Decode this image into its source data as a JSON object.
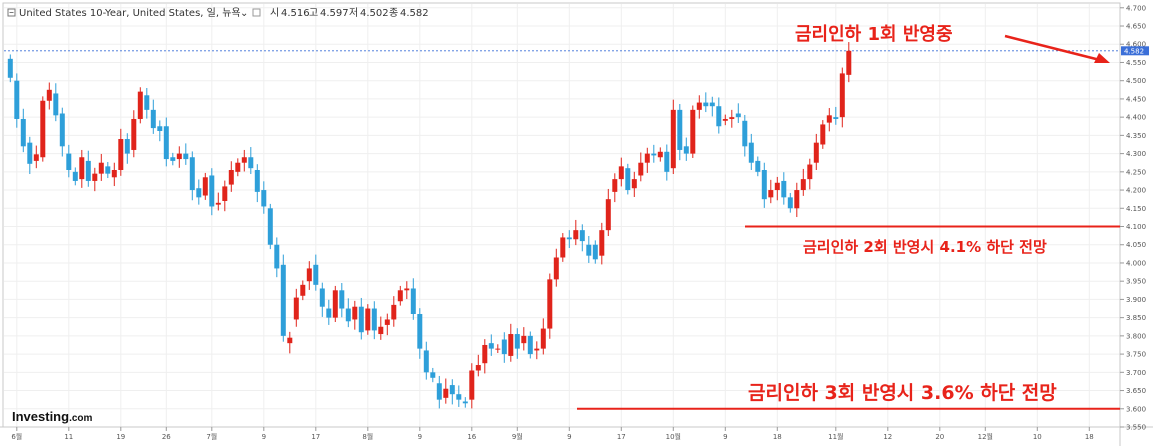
{
  "header": {
    "title": "United States 10-Year, United States, 일, 뉴욕",
    "open_label": "시",
    "open_value": "4.516",
    "high_label": "고",
    "high_value": "4.597",
    "low_label": "저",
    "low_value": "4.502",
    "close_label": "종",
    "close_value": "4.582"
  },
  "logo": {
    "main": "Investing",
    "suffix": ".com"
  },
  "current_price_label": "4.582",
  "annotations": {
    "a1": "금리인하 1회 반영중",
    "a2": "금리인하 2회 반영시 4.1% 하단 전망",
    "a3": "금리인하 3회 반영시 3.6% 하단 전망"
  },
  "colors": {
    "up": "#e0241b",
    "down": "#2e9fd9",
    "annotation": "#e8231a",
    "price_line": "#3b6fd8",
    "price_label_bg": "#3b6fd8"
  },
  "chart_data": {
    "type": "candlestick",
    "y_ticks": [
      "3.550",
      "3.600",
      "3.650",
      "3.700",
      "3.750",
      "3.800",
      "3.850",
      "3.900",
      "3.950",
      "4.000",
      "4.050",
      "4.100",
      "4.150",
      "4.200",
      "4.250",
      "4.300",
      "4.350",
      "4.400",
      "4.450",
      "4.500",
      "4.550",
      "4.600",
      "4.650",
      "4.700"
    ],
    "ylim": [
      3.55,
      4.72
    ],
    "x_ticks": [
      "6월",
      "11",
      "19",
      "26",
      "7월",
      "9",
      "17",
      "8월",
      "9",
      "16",
      "9월",
      "9",
      "17",
      "10월",
      "9",
      "18",
      "11월",
      "12",
      "20",
      "12월",
      "10",
      "18"
    ],
    "x_tick_index": [
      1,
      9,
      17,
      24,
      31,
      39,
      47,
      55,
      63,
      71,
      78,
      86,
      94,
      102,
      110,
      118,
      127,
      135,
      143,
      150,
      158,
      166
    ],
    "horizontal_lines": [
      4.1,
      3.6
    ],
    "current_price": 4.582,
    "candles": [
      [
        4.56,
        4.508
      ],
      [
        4.5,
        4.395
      ],
      [
        4.395,
        4.32
      ],
      [
        4.33,
        4.272
      ],
      [
        4.28,
        4.298
      ],
      [
        4.29,
        4.445
      ],
      [
        4.445,
        4.475
      ],
      [
        4.465,
        4.405
      ],
      [
        4.41,
        4.32
      ],
      [
        4.3,
        4.255
      ],
      [
        4.25,
        4.225
      ],
      [
        4.23,
        4.29
      ],
      [
        4.28,
        4.225
      ],
      [
        4.225,
        4.245
      ],
      [
        4.245,
        4.275
      ],
      [
        4.265,
        4.245
      ],
      [
        4.235,
        4.255
      ],
      [
        4.255,
        4.34
      ],
      [
        4.34,
        4.3
      ],
      [
        4.31,
        4.395
      ],
      [
        4.395,
        4.47
      ],
      [
        4.46,
        4.42
      ],
      [
        4.42,
        4.37
      ],
      [
        4.375,
        4.362
      ],
      [
        4.375,
        4.285
      ],
      [
        4.29,
        4.28
      ],
      [
        4.285,
        4.3
      ],
      [
        4.3,
        4.285
      ],
      [
        4.29,
        4.2
      ],
      [
        4.205,
        4.18
      ],
      [
        4.185,
        4.235
      ],
      [
        4.24,
        4.155
      ],
      [
        4.16,
        4.165
      ],
      [
        4.17,
        4.21
      ],
      [
        4.215,
        4.255
      ],
      [
        4.25,
        4.275
      ],
      [
        4.275,
        4.29
      ],
      [
        4.29,
        4.26
      ],
      [
        4.255,
        4.195
      ],
      [
        4.2,
        4.155
      ],
      [
        4.15,
        4.05
      ],
      [
        4.05,
        3.985
      ],
      [
        3.995,
        3.8
      ],
      [
        3.78,
        3.795
      ],
      [
        3.845,
        3.905
      ],
      [
        3.91,
        3.94
      ],
      [
        3.95,
        3.985
      ],
      [
        3.995,
        3.94
      ],
      [
        3.93,
        3.88
      ],
      [
        3.875,
        3.85
      ],
      [
        3.85,
        3.925
      ],
      [
        3.925,
        3.875
      ],
      [
        3.875,
        3.84
      ],
      [
        3.845,
        3.88
      ],
      [
        3.88,
        3.81
      ],
      [
        3.815,
        3.875
      ],
      [
        3.875,
        3.815
      ],
      [
        3.805,
        3.825
      ],
      [
        3.83,
        3.845
      ],
      [
        3.845,
        3.885
      ],
      [
        3.895,
        3.925
      ],
      [
        3.925,
        3.93
      ],
      [
        3.93,
        3.86
      ],
      [
        3.86,
        3.765
      ],
      [
        3.76,
        3.7
      ],
      [
        3.7,
        3.685
      ],
      [
        3.67,
        3.625
      ],
      [
        3.63,
        3.655
      ],
      [
        3.665,
        3.64
      ],
      [
        3.64,
        3.625
      ],
      [
        3.62,
        3.615
      ],
      [
        3.625,
        3.705
      ],
      [
        3.705,
        3.72
      ],
      [
        3.725,
        3.775
      ],
      [
        3.78,
        3.765
      ],
      [
        3.765,
        3.765
      ],
      [
        3.79,
        3.75
      ],
      [
        3.745,
        3.805
      ],
      [
        3.805,
        3.765
      ],
      [
        3.78,
        3.8
      ],
      [
        3.8,
        3.75
      ],
      [
        3.76,
        3.765
      ],
      [
        3.765,
        3.82
      ],
      [
        3.82,
        3.955
      ],
      [
        3.955,
        4.015
      ],
      [
        4.015,
        4.07
      ],
      [
        4.07,
        4.065
      ],
      [
        4.065,
        4.09
      ],
      [
        4.09,
        4.06
      ],
      [
        4.05,
        4.02
      ],
      [
        4.05,
        4.01
      ],
      [
        4.02,
        4.09
      ],
      [
        4.09,
        4.175
      ],
      [
        4.195,
        4.23
      ],
      [
        4.23,
        4.265
      ],
      [
        4.26,
        4.2
      ],
      [
        4.205,
        4.23
      ],
      [
        4.24,
        4.275
      ],
      [
        4.275,
        4.3
      ],
      [
        4.3,
        4.295
      ],
      [
        4.29,
        4.305
      ],
      [
        4.305,
        4.25
      ],
      [
        4.26,
        4.42
      ],
      [
        4.42,
        4.31
      ],
      [
        4.32,
        4.3
      ],
      [
        4.3,
        4.42
      ],
      [
        4.42,
        4.44
      ],
      [
        4.44,
        4.43
      ],
      [
        4.44,
        4.43
      ],
      [
        4.43,
        4.375
      ],
      [
        4.39,
        4.395
      ],
      [
        4.395,
        4.4
      ],
      [
        4.41,
        4.4
      ],
      [
        4.39,
        4.32
      ],
      [
        4.33,
        4.275
      ],
      [
        4.28,
        4.25
      ],
      [
        4.255,
        4.175
      ],
      [
        4.18,
        4.2
      ],
      [
        4.2,
        4.22
      ],
      [
        4.225,
        4.18
      ],
      [
        4.18,
        4.15
      ],
      [
        4.15,
        4.2
      ],
      [
        4.2,
        4.23
      ],
      [
        4.23,
        4.27
      ],
      [
        4.275,
        4.33
      ],
      [
        4.325,
        4.38
      ],
      [
        4.385,
        4.405
      ],
      [
        4.4,
        4.395
      ],
      [
        4.4,
        4.52
      ],
      [
        4.516,
        4.582
      ]
    ]
  }
}
